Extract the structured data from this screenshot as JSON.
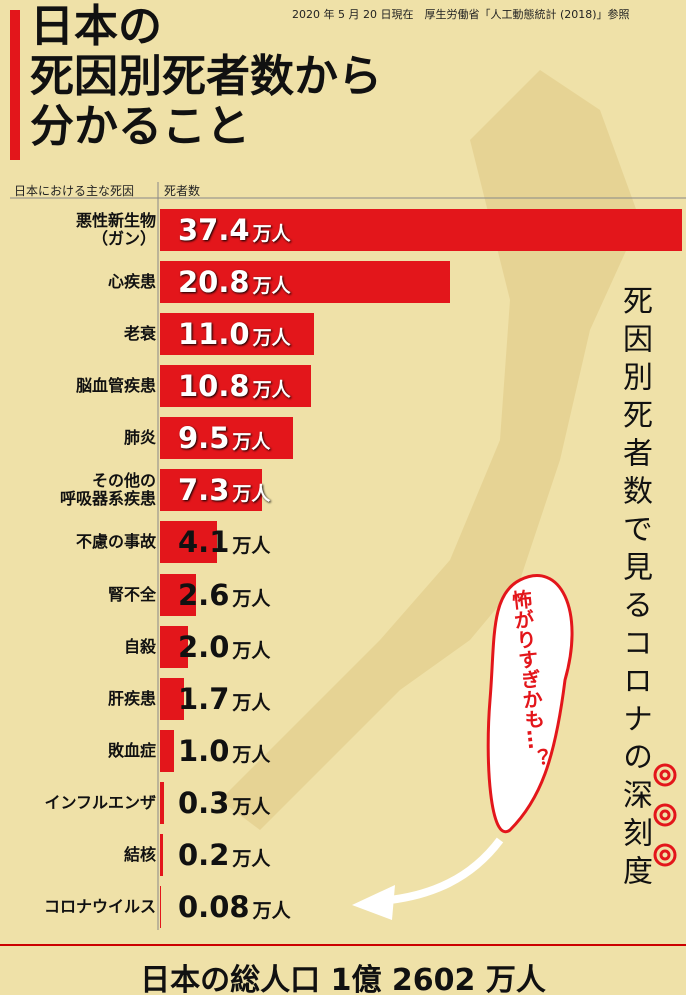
{
  "chart_data": {
    "type": "bar",
    "orientation": "horizontal",
    "title": "日本の\n死因別死者数から\n分かること",
    "source": "2020 年 5 月 20 日現在　厚生労働省「人工動態統計 (2018)」参照",
    "category_header": "日本における主な死因",
    "value_header": "死者数",
    "categories": [
      "悪性新生物\n（ガン）",
      "心疾患",
      "老衰",
      "脳血管疾患",
      "肺炎",
      "その他の\n呼吸器系疾患",
      "不慮の事故",
      "腎不全",
      "自殺",
      "肝疾患",
      "敗血症",
      "インフルエンザ",
      "結核",
      "コロナウイルス"
    ],
    "values": [
      37.4,
      20.8,
      11.0,
      10.8,
      9.5,
      7.3,
      4.1,
      2.6,
      2.0,
      1.7,
      1.0,
      0.3,
      0.2,
      0.08
    ],
    "value_labels": [
      "37.4",
      "20.8",
      "11.0",
      "10.8",
      "9.5",
      "7.3",
      "4.1",
      "2.6",
      "2.0",
      "1.7",
      "1.0",
      "0.3",
      "0.2",
      "0.08"
    ],
    "unit": "万人",
    "color": "#e3161b",
    "side_text": "死因別死者数で見るコロナの深刻度",
    "bubble_text": "怖がりすぎかも…？",
    "footer": "日本の総人口 1億 2602 万人"
  }
}
